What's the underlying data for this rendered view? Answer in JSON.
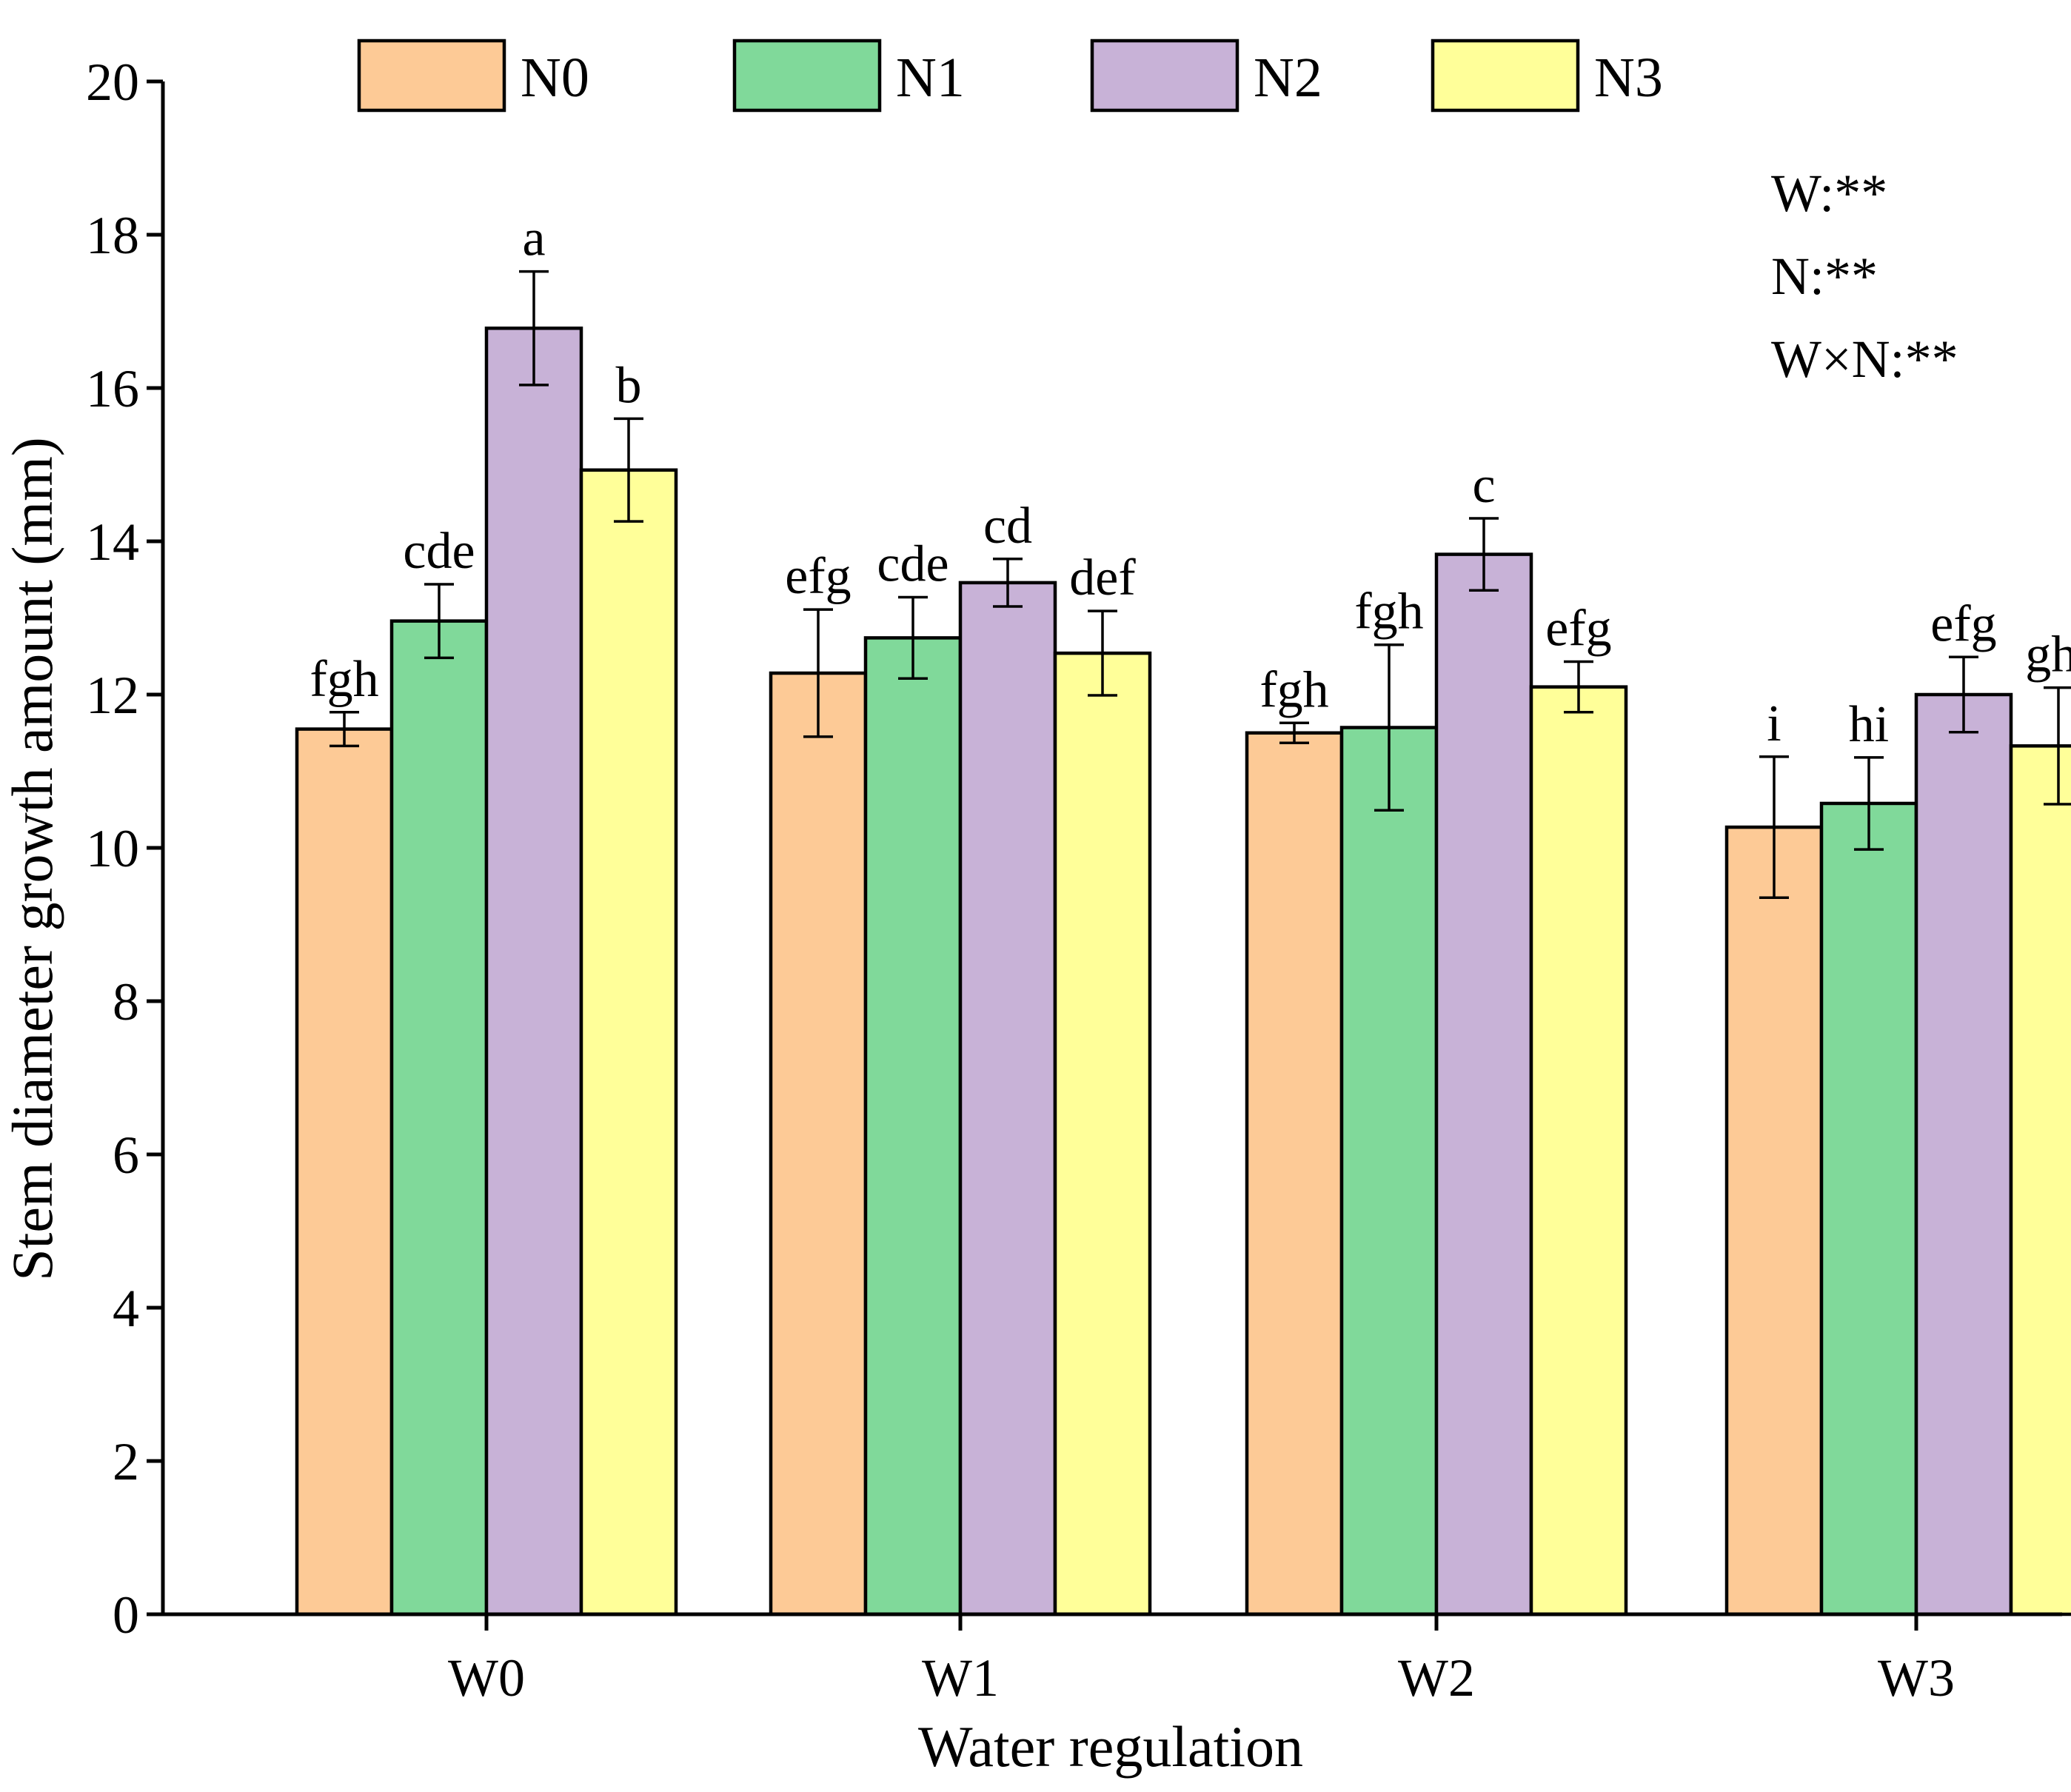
{
  "chart_data": {
    "type": "bar",
    "title": "",
    "xlabel": "Water regulation",
    "ylabel": "Stem diameter growth amount (mm)",
    "ylim": [
      0,
      20
    ],
    "yticks": [
      0,
      2,
      4,
      6,
      8,
      10,
      12,
      14,
      16,
      18,
      20
    ],
    "grid": false,
    "legend_position": "top",
    "categories": [
      "W0",
      "W1",
      "W2",
      "W3"
    ],
    "series": [
      {
        "name": "N0",
        "color": "#FDCA96",
        "values": [
          11.55,
          12.28,
          11.5,
          10.27
        ],
        "errors": [
          0.22,
          0.83,
          0.13,
          0.92
        ],
        "labels": [
          "fgh",
          "efg",
          "fgh",
          "i"
        ]
      },
      {
        "name": "N1",
        "color": "#80D99A",
        "values": [
          12.96,
          12.74,
          11.57,
          10.58
        ],
        "errors": [
          0.48,
          0.53,
          1.08,
          0.6
        ],
        "labels": [
          "cde",
          "cde",
          "fgh",
          "hi"
        ]
      },
      {
        "name": "N2",
        "color": "#C8B2D7",
        "values": [
          16.78,
          13.46,
          13.83,
          12.0
        ],
        "errors": [
          0.74,
          0.31,
          0.47,
          0.49
        ],
        "labels": [
          "a",
          "cd",
          "c",
          "efg"
        ]
      },
      {
        "name": "N3",
        "color": "#FFFF99",
        "values": [
          14.93,
          12.54,
          12.1,
          11.33
        ],
        "errors": [
          0.67,
          0.55,
          0.33,
          0.76
        ],
        "labels": [
          "b",
          "def",
          "efg",
          "ghi"
        ]
      }
    ],
    "annotations": [
      "W:**",
      "N:**",
      "W×N:**"
    ]
  }
}
